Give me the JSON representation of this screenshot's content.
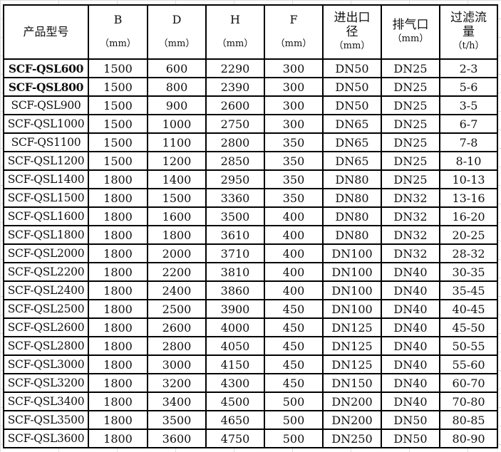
{
  "headers": [
    {
      "label": "产品型号",
      "unit": ""
    },
    {
      "label": "B",
      "unit": "（mm）"
    },
    {
      "label": "D",
      "unit": "（mm）"
    },
    {
      "label": "H",
      "unit": "（mm）"
    },
    {
      "label": "F",
      "unit": "（mm）"
    },
    {
      "label": "进出口径",
      "unit": "（mm）"
    },
    {
      "label": "排气口",
      "unit": "（mm）"
    },
    {
      "label": "过滤流量",
      "unit": "（t/h）"
    }
  ],
  "rows": [
    [
      "SCF-QSL600",
      "1500",
      "600",
      "2290",
      "300",
      "DN50",
      "DN25",
      "2-3"
    ],
    [
      "SCF-QSL800",
      "1500",
      "800",
      "2390",
      "300",
      "DN50",
      "DN25",
      "5-6"
    ],
    [
      "SCF-QSL900",
      "1500",
      "900",
      "2600",
      "300",
      "DN50",
      "DN25",
      "3-5"
    ],
    [
      "SCF-QSL1000",
      "1500",
      "1000",
      "2750",
      "300",
      "DN65",
      "DN25",
      "6-7"
    ],
    [
      "SCF-QS1100",
      "1500",
      "1100",
      "2800",
      "350",
      "DN65",
      "DN25",
      "7-8"
    ],
    [
      "SCF-QSL1200",
      "1500",
      "1200",
      "2850",
      "350",
      "DN65",
      "DN25",
      "8-10"
    ],
    [
      "SCF-QSL1400",
      "1800",
      "1400",
      "2950",
      "350",
      "DN80",
      "DN25",
      "10-13"
    ],
    [
      "SCF-QSL1500",
      "1800",
      "1500",
      "3360",
      "350",
      "DN80",
      "DN32",
      "13-16"
    ],
    [
      "SCF-QSL1600",
      "1800",
      "1600",
      "3500",
      "400",
      "DN80",
      "DN32",
      "16-20"
    ],
    [
      "SCF-QSL1800",
      "1800",
      "1800",
      "3610",
      "400",
      "DN80",
      "DN32",
      "20-25"
    ],
    [
      "SCF-QSL2000",
      "1800",
      "2000",
      "3710",
      "400",
      "DN100",
      "DN32",
      "28-32"
    ],
    [
      "SCF-QSL2200",
      "1800",
      "2200",
      "3810",
      "400",
      "DN100",
      "DN40",
      "30-35"
    ],
    [
      "SCF-QSL2400",
      "1800",
      "2400",
      "3860",
      "400",
      "DN100",
      "DN40",
      "35-45"
    ],
    [
      "SCF-QSL2500",
      "1800",
      "2500",
      "3900",
      "450",
      "DN100",
      "DN40",
      "40-45"
    ],
    [
      "SCF-QSL2600",
      "1800",
      "2600",
      "4000",
      "450",
      "DN125",
      "DN40",
      "45-50"
    ],
    [
      "SCF-QSL2800",
      "1800",
      "2800",
      "4050",
      "450",
      "DN125",
      "DN40",
      "50-55"
    ],
    [
      "SCF-QSL3000",
      "1800",
      "3000",
      "4150",
      "450",
      "DN125",
      "DN40",
      "55-60"
    ],
    [
      "SCF-QSL3200",
      "1800",
      "3200",
      "4300",
      "450",
      "DN150",
      "DN40",
      "60-70"
    ],
    [
      "SCF-QSL3400",
      "1800",
      "3400",
      "4500",
      "500",
      "DN200",
      "DN40",
      "70-80"
    ],
    [
      "SCF-QSL3500",
      "1800",
      "3500",
      "4650",
      "500",
      "DN200",
      "DN50",
      "80-85"
    ],
    [
      "SCF-QSL3600",
      "1800",
      "3600",
      "4750",
      "500",
      "DN250",
      "DN50",
      "80-90"
    ]
  ]
}
